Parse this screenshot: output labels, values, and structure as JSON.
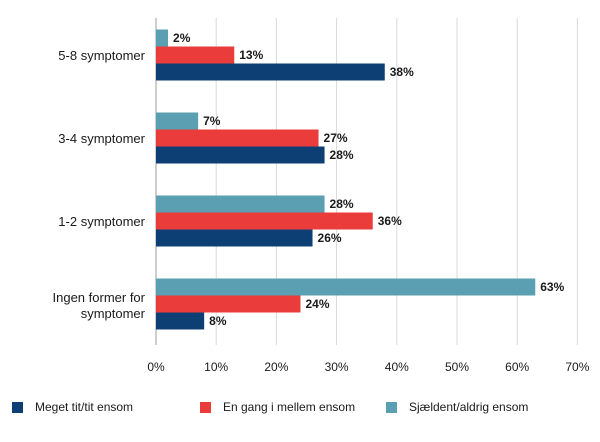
{
  "chart_data": {
    "type": "bar",
    "orientation": "horizontal",
    "categories": [
      "5-8 symptomer",
      "3-4 symptomer",
      "1-2 symptomer",
      "Ingen former for symptomer"
    ],
    "series": [
      {
        "name": "Sjældent/aldrig ensom",
        "color": "#5a9fb2",
        "values": [
          2,
          7,
          28,
          63
        ],
        "labels": [
          "2%",
          "7%",
          "28%",
          "63%"
        ]
      },
      {
        "name": "En gang i mellem ensom",
        "color": "#ea3d3b",
        "values": [
          13,
          27,
          36,
          24
        ],
        "labels": [
          "13%",
          "27%",
          "36%",
          "24%"
        ]
      },
      {
        "name": "Meget tit/tit ensom",
        "color": "#0d3f74",
        "values": [
          38,
          28,
          26,
          8
        ],
        "labels": [
          "38%",
          "28%",
          "26%",
          "8%"
        ]
      }
    ],
    "xlim": [
      0,
      70
    ],
    "xticks": [
      "0%",
      "10%",
      "20%",
      "30%",
      "40%",
      "50%",
      "60%",
      "70%"
    ],
    "grid": true,
    "legend_position": "bottom",
    "legend_order": [
      "Meget tit/tit ensom",
      "En gang i mellem ensom",
      "Sjældent/aldrig ensom"
    ]
  }
}
